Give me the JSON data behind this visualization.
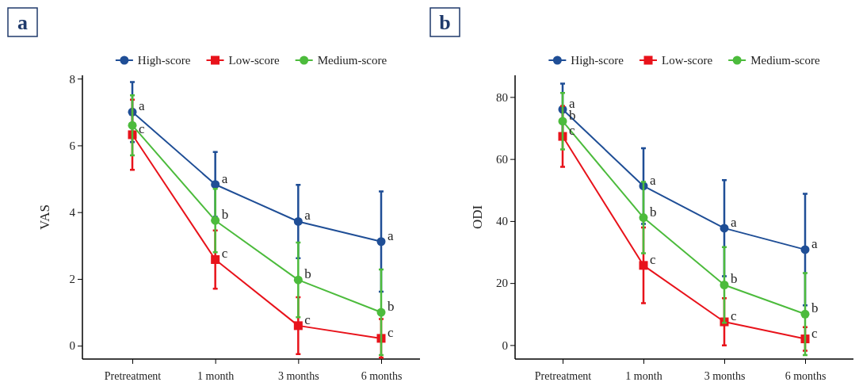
{
  "chart_data": [
    {
      "type": "line",
      "title": "a",
      "ylabel": "VAS",
      "categories": [
        "Pretreatment",
        "1 month",
        "3 months",
        "6 months"
      ],
      "ylim": [
        -0.4,
        8.1
      ],
      "yticks": [
        0,
        2,
        4,
        6,
        8
      ],
      "legend": "top",
      "grid": false,
      "line_style": "solid",
      "series": [
        {
          "name": "High-score",
          "color": "#1f4e96",
          "marker": "circle",
          "values": [
            7.0,
            4.83,
            3.72,
            3.12
          ],
          "errors": [
            0.9,
            0.97,
            1.1,
            1.5
          ]
        },
        {
          "name": "Low-score",
          "color": "#e8131b",
          "marker": "square",
          "values": [
            6.32,
            2.58,
            0.6,
            0.22
          ],
          "errors": [
            1.05,
            0.87,
            0.85,
            0.58
          ]
        },
        {
          "name": "Medium-score",
          "color": "#4cbb3c",
          "marker": "circle",
          "values": [
            6.6,
            3.75,
            1.97,
            1.0
          ],
          "errors": [
            0.9,
            0.95,
            1.12,
            1.28
          ]
        }
      ],
      "annotations": [
        {
          "text": "a",
          "x": "Pretreatment",
          "y": 7.0
        },
        {
          "text": "c",
          "x": "Pretreatment",
          "y": 6.32
        },
        {
          "text": "a",
          "x": "1 month",
          "y": 4.83
        },
        {
          "text": "b",
          "x": "1 month",
          "y": 3.75
        },
        {
          "text": "c",
          "x": "1 month",
          "y": 2.58
        },
        {
          "text": "a",
          "x": "3 months",
          "y": 3.72
        },
        {
          "text": "b",
          "x": "3 months",
          "y": 1.97
        },
        {
          "text": "c",
          "x": "3 months",
          "y": 0.6
        },
        {
          "text": "a",
          "x": "6 months",
          "y": 3.12
        },
        {
          "text": "b",
          "x": "6 months",
          "y": 1.0
        },
        {
          "text": "c",
          "x": "6 months",
          "y": 0.22
        }
      ]
    },
    {
      "type": "line",
      "title": "b",
      "ylabel": "ODI",
      "categories": [
        "Pretreatment",
        "1 month",
        "3 months",
        "6 months"
      ],
      "ylim": [
        -4.5,
        87
      ],
      "yticks": [
        0,
        20,
        40,
        60,
        80
      ],
      "legend": "top",
      "grid": false,
      "line_style": "solid",
      "series": [
        {
          "name": "High-score",
          "color": "#1f4e96",
          "marker": "circle",
          "values": [
            76,
            51.3,
            37.7,
            30.8
          ],
          "errors": [
            8.3,
            12.2,
            15.5,
            18
          ]
        },
        {
          "name": "Low-score",
          "color": "#e8131b",
          "marker": "square",
          "values": [
            67.3,
            25.7,
            7.5,
            2
          ],
          "errors": [
            9.8,
            12.2,
            7.6,
            3.8
          ]
        },
        {
          "name": "Medium-score",
          "color": "#4cbb3c",
          "marker": "circle",
          "values": [
            72.2,
            41.1,
            19.4,
            10
          ],
          "errors": [
            9.1,
            11.5,
            12.2,
            13.2
          ]
        }
      ],
      "annotations": [
        {
          "text": "a",
          "x": "Pretreatment",
          "y": 76
        },
        {
          "text": "b",
          "x": "Pretreatment",
          "y": 72.2
        },
        {
          "text": "c",
          "x": "Pretreatment",
          "y": 67.3
        },
        {
          "text": "a",
          "x": "1 month",
          "y": 51.3
        },
        {
          "text": "b",
          "x": "1 month",
          "y": 41.1
        },
        {
          "text": "c",
          "x": "1 month",
          "y": 25.7
        },
        {
          "text": "a",
          "x": "3 months",
          "y": 37.7
        },
        {
          "text": "b",
          "x": "3 months",
          "y": 19.4
        },
        {
          "text": "c",
          "x": "3 months",
          "y": 7.5
        },
        {
          "text": "a",
          "x": "6 months",
          "y": 30.8
        },
        {
          "text": "b",
          "x": "6 months",
          "y": 10
        },
        {
          "text": "c",
          "x": "6 months",
          "y": 2
        }
      ]
    }
  ]
}
